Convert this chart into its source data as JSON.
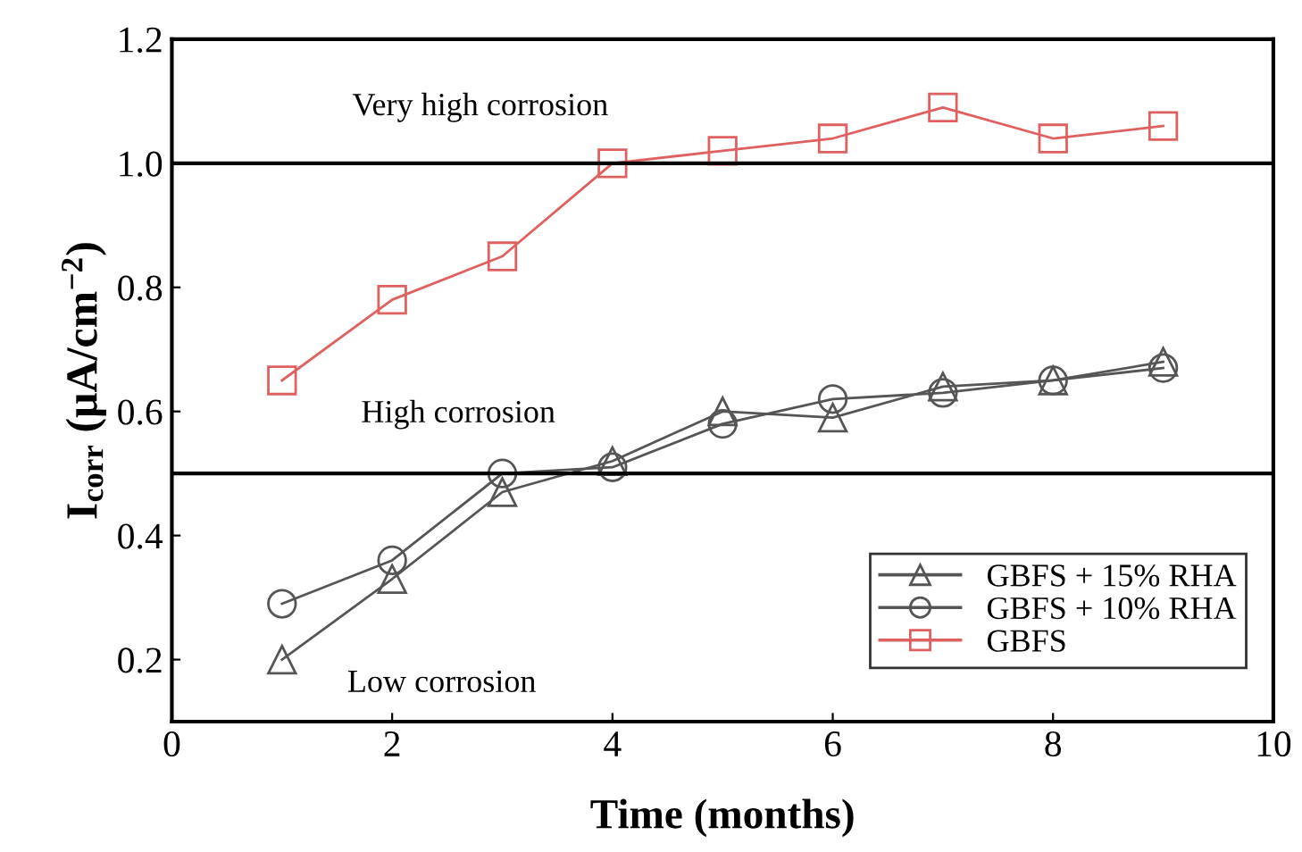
{
  "chart_data": {
    "type": "line",
    "xlabel": "Time (months)",
    "ylabel": "I$_{corr}$ (μA/cm$^{−2}$)",
    "x": [
      1,
      2,
      3,
      4,
      5,
      6,
      7,
      8,
      9
    ],
    "xlim": [
      0,
      10
    ],
    "xticks": [
      0,
      2,
      4,
      6,
      8,
      10
    ],
    "ylim": [
      0.1,
      1.2
    ],
    "yticks": [
      {
        "value": 0.2,
        "label": "0.2"
      },
      {
        "value": 0.4,
        "label": "0.4"
      },
      {
        "value": 0.6,
        "label": "0.6"
      },
      {
        "value": 0.8,
        "label": "0.8"
      },
      {
        "value": 1.0,
        "label": "1.0"
      },
      {
        "value": 1.2,
        "label": "1.2"
      }
    ],
    "series": [
      {
        "name": "GBFS + 15% RHA",
        "color": "#555555",
        "marker": "triangle",
        "values": [
          0.2,
          0.33,
          0.47,
          0.52,
          0.6,
          0.59,
          0.64,
          0.65,
          0.68
        ]
      },
      {
        "name": "GBFS + 10% RHA",
        "color": "#555555",
        "marker": "circle",
        "values": [
          0.29,
          0.36,
          0.5,
          0.51,
          0.58,
          0.62,
          0.63,
          0.65,
          0.67
        ]
      },
      {
        "name": "GBFS",
        "color": "#e06060",
        "marker": "square",
        "values": [
          0.65,
          0.78,
          0.85,
          1.0,
          1.02,
          1.04,
          1.09,
          1.04,
          1.06
        ]
      }
    ],
    "ref_lines": [
      {
        "axis": "y",
        "value": 1.0,
        "color": "#000000"
      },
      {
        "axis": "y",
        "value": 0.5,
        "color": "#000000"
      }
    ],
    "annotations": [
      "Very high corrosion",
      "High corrosion",
      "Low corrosion"
    ],
    "legend": "bottom right",
    "grid": false
  }
}
